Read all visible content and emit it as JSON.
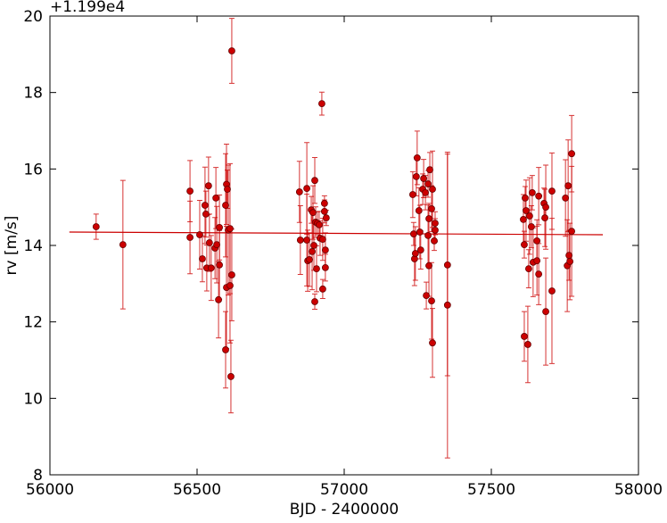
{
  "chart_data": {
    "type": "errorbar",
    "xlabel": "BJD - 2400000",
    "ylabel": "rv [m/s]",
    "y_offset_text": "+1.199e4",
    "color": "#cc0000",
    "x": [
      56157,
      56248,
      56476,
      56476,
      56509,
      56518,
      56527,
      56530,
      56533,
      56539,
      56542,
      56548,
      56561,
      56564,
      56567,
      56573,
      56576,
      56576,
      56597,
      56597,
      56600,
      56603,
      56600,
      56606,
      56612,
      56612,
      56618,
      56615,
      56618,
      56848,
      56851,
      56873,
      56873,
      56876,
      56882,
      56888,
      56891,
      56894,
      56897,
      56900,
      56903,
      56900,
      56906,
      56909,
      56915,
      56918,
      56924,
      56927,
      56927,
      56933,
      56933,
      56936,
      56936,
      56939,
      57233,
      57236,
      57239,
      57242,
      57245,
      57248,
      57254,
      57257,
      57260,
      57267,
      57270,
      57276,
      57279,
      57285,
      57285,
      57288,
      57288,
      57291,
      57297,
      57297,
      57300,
      57300,
      57306,
      57309,
      57309,
      57351,
      57351,
      57609,
      57612,
      57612,
      57615,
      57618,
      57624,
      57627,
      57630,
      57636,
      57639,
      57642,
      57655,
      57655,
      57661,
      57661,
      57679,
      57682,
      57685,
      57685,
      57706,
      57706,
      57752,
      57758,
      57761,
      57764,
      57767,
      57773,
      57773
    ],
    "values": [
      14.49,
      14.02,
      15.42,
      14.21,
      14.28,
      13.65,
      15.05,
      14.82,
      13.41,
      15.56,
      14.07,
      13.41,
      13.93,
      15.24,
      14.02,
      12.58,
      14.47,
      13.49,
      11.27,
      15.05,
      15.6,
      15.47,
      12.9,
      14.4,
      12.95,
      14.44,
      13.23,
      10.57,
      19.09,
      15.4,
      14.14,
      15.49,
      14.14,
      13.6,
      13.63,
      14.93,
      13.84,
      14.86,
      14.0,
      15.7,
      14.61,
      12.53,
      13.39,
      14.58,
      14.54,
      14.19,
      17.71,
      12.86,
      14.16,
      15.1,
      14.89,
      13.88,
      13.42,
      14.72,
      15.33,
      14.3,
      13.65,
      13.79,
      15.8,
      16.29,
      14.91,
      14.35,
      13.88,
      15.47,
      15.75,
      15.38,
      12.69,
      15.61,
      14.26,
      13.47,
      14.7,
      15.98,
      12.55,
      14.96,
      15.47,
      11.45,
      14.12,
      14.4,
      14.58,
      13.49,
      12.44,
      14.68,
      14.02,
      11.62,
      15.24,
      14.91,
      11.41,
      13.39,
      14.77,
      14.49,
      15.38,
      13.56,
      13.6,
      14.12,
      13.25,
      15.29,
      15.1,
      14.72,
      12.27,
      15.0,
      12.81,
      15.42,
      15.24,
      13.47,
      15.56,
      13.74,
      13.58,
      16.4,
      14.37
    ],
    "errors": [
      0.33,
      1.68,
      0.8,
      0.95,
      0.9,
      0.6,
      1.0,
      0.6,
      0.6,
      0.75,
      0.75,
      0.85,
      0.8,
      0.8,
      1.0,
      1.0,
      0.85,
      0.9,
      1.0,
      1.35,
      1.05,
      0.5,
      1.6,
      1.7,
      1.5,
      1.7,
      1.2,
      0.95,
      0.85,
      0.8,
      0.9,
      1.2,
      1.2,
      0.8,
      0.7,
      0.35,
      1.0,
      0.7,
      0.65,
      0.6,
      0.4,
      0.2,
      0.6,
      0.3,
      0.35,
      0.45,
      0.3,
      0.25,
      0.55,
      0.2,
      0.3,
      0.45,
      0.35,
      0.2,
      0.6,
      0.3,
      0.7,
      0.7,
      0.5,
      0.7,
      0.6,
      0.7,
      0.5,
      0.4,
      0.5,
      0.45,
      0.35,
      0.35,
      0.8,
      0.8,
      0.4,
      0.45,
      1.0,
      0.6,
      1.0,
      0.9,
      0.25,
      0.3,
      0.3,
      2.9,
      4.0,
      0.65,
      0.35,
      0.65,
      0.3,
      0.8,
      1.0,
      0.5,
      1.0,
      0.55,
      0.45,
      0.9,
      0.9,
      0.55,
      0.8,
      0.75,
      0.4,
      0.75,
      1.4,
      1.1,
      1.9,
      1.0,
      1.0,
      1.2,
      1.2,
      0.65,
      1.0,
      1.0,
      1.7
    ],
    "fit": {
      "x": [
        56066,
        57879
      ],
      "values": [
        14.35,
        14.28
      ]
    },
    "xlim": [
      56000,
      58000
    ],
    "xticks": [
      56000,
      56500,
      57000,
      57500,
      58000
    ],
    "ylim": [
      8,
      20
    ],
    "yticks": [
      8,
      10,
      12,
      14,
      16,
      18,
      20
    ]
  }
}
